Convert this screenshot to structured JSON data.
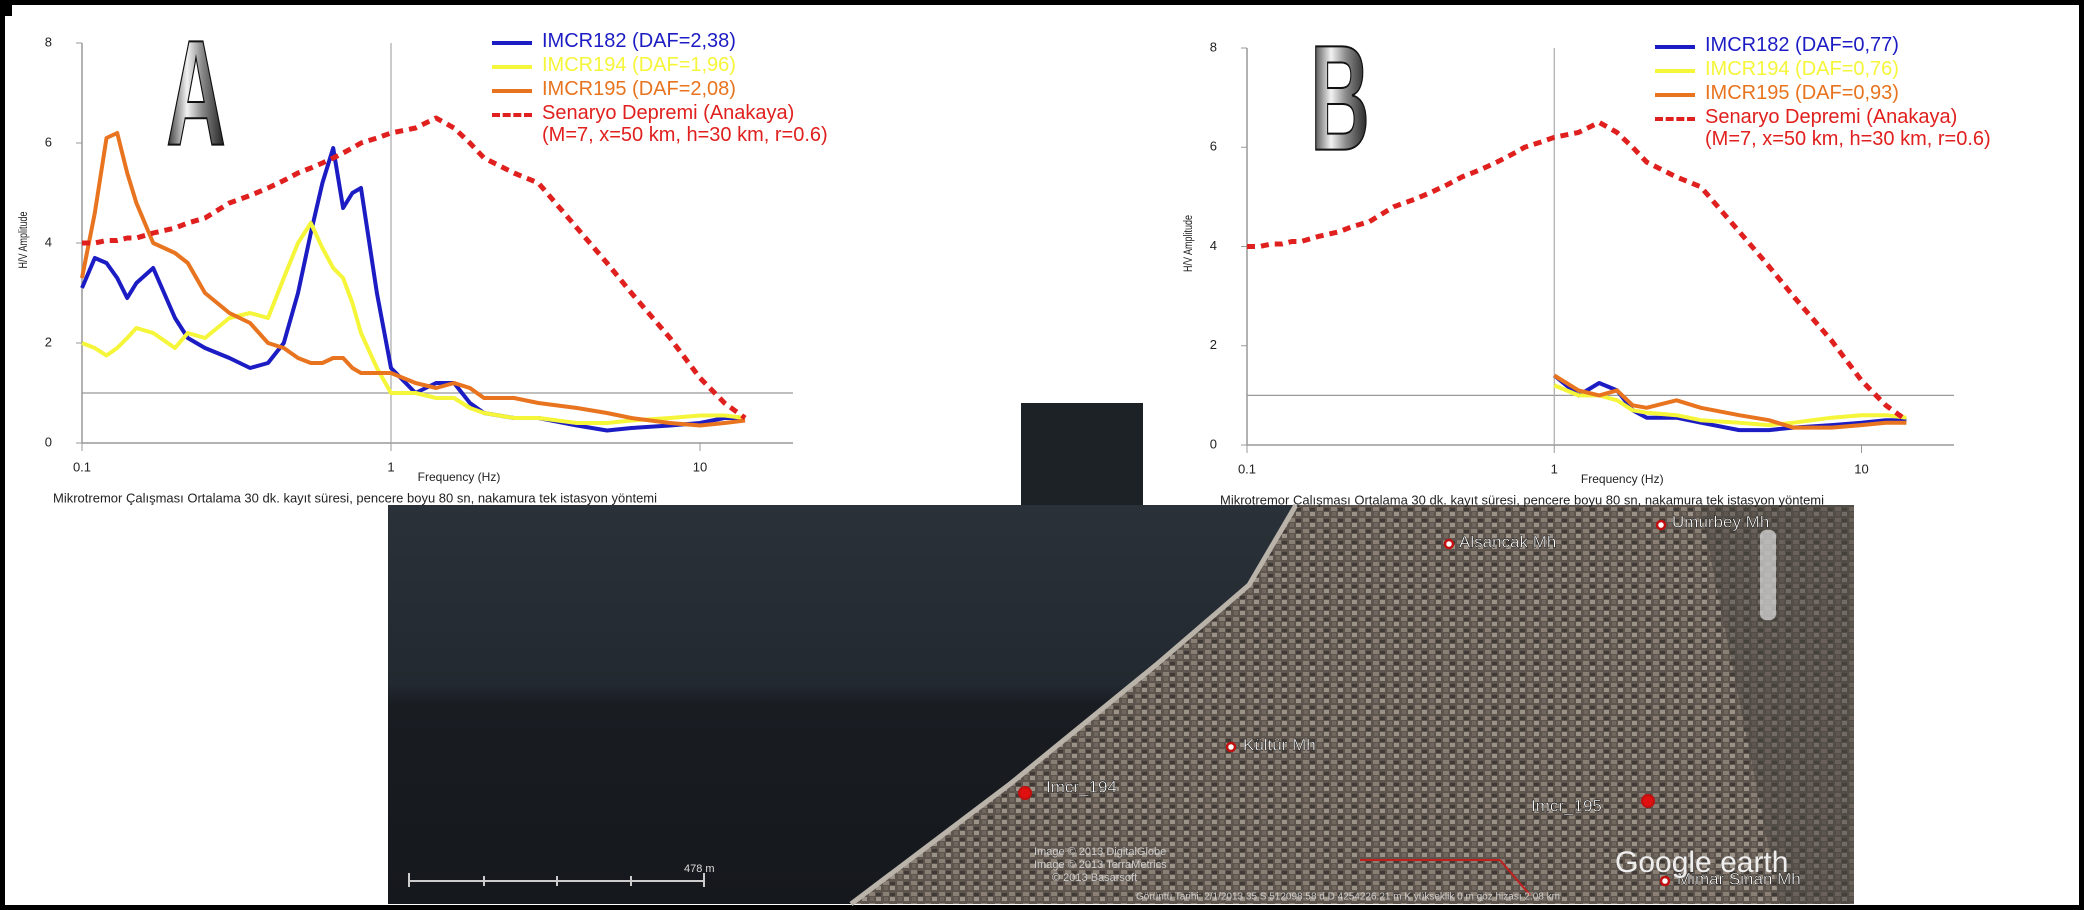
{
  "chart_data": [
    {
      "type": "line",
      "label": "A",
      "xscale": "log",
      "xlim": [
        0.1,
        20
      ],
      "ylim": [
        0,
        8
      ],
      "xticks": [
        0.1,
        1,
        10
      ],
      "yticks": [
        0,
        2,
        4,
        6,
        8
      ],
      "reference_lines": {
        "x": 1,
        "y": 1
      },
      "xlabel": "Frequency (Hz)",
      "ylabel": "H/V Amplitude",
      "caption": "Mikrotremor Çalışması Ortalama 30 dk. kayıt süresi, pencere boyu 80 sn, nakamura tek istasyon yöntemi",
      "x": [
        0.1,
        0.11,
        0.12,
        0.13,
        0.14,
        0.15,
        0.17,
        0.2,
        0.22,
        0.25,
        0.3,
        0.35,
        0.4,
        0.45,
        0.5,
        0.55,
        0.6,
        0.65,
        0.7,
        0.75,
        0.8,
        0.9,
        1,
        1.2,
        1.4,
        1.6,
        1.8,
        2,
        2.5,
        3,
        4,
        5,
        6,
        8,
        10,
        12,
        14
      ],
      "series": [
        {
          "name": "IMCR182 (DAF=2,38)",
          "color": "#1c1cc4",
          "style": "solid",
          "values": [
            3.1,
            3.7,
            3.6,
            3.3,
            2.9,
            3.2,
            3.5,
            2.5,
            2.1,
            1.9,
            1.7,
            1.5,
            1.6,
            2.0,
            3.0,
            4.2,
            5.2,
            5.9,
            4.7,
            5.0,
            5.1,
            3.0,
            1.5,
            1.0,
            1.2,
            1.2,
            0.8,
            0.6,
            0.5,
            0.5,
            0.35,
            0.25,
            0.3,
            0.35,
            0.4,
            0.5,
            0.5
          ]
        },
        {
          "name": "IMCR194 (DAF=1,96)",
          "color": "#f5f53a",
          "style": "solid",
          "values": [
            2.0,
            1.9,
            1.75,
            1.9,
            2.1,
            2.3,
            2.2,
            1.9,
            2.2,
            2.1,
            2.5,
            2.6,
            2.5,
            3.3,
            4.0,
            4.4,
            3.9,
            3.5,
            3.3,
            2.8,
            2.2,
            1.5,
            1.0,
            1.0,
            0.9,
            0.9,
            0.7,
            0.6,
            0.5,
            0.5,
            0.4,
            0.4,
            0.45,
            0.5,
            0.55,
            0.55,
            0.5
          ]
        },
        {
          "name": "IMCR195 (DAF=2,08)",
          "color": "#e8741f",
          "style": "solid",
          "values": [
            3.3,
            4.6,
            6.1,
            6.2,
            5.4,
            4.8,
            4.0,
            3.8,
            3.6,
            3.0,
            2.6,
            2.4,
            2.0,
            1.9,
            1.7,
            1.6,
            1.6,
            1.7,
            1.7,
            1.5,
            1.4,
            1.4,
            1.4,
            1.2,
            1.1,
            1.2,
            1.1,
            0.9,
            0.9,
            0.8,
            0.7,
            0.6,
            0.5,
            0.4,
            0.35,
            0.4,
            0.45
          ]
        },
        {
          "name": "Senaryo Depremi (Anakaya)\n(M=7, x=50 km, h=30 km, r=0.6)",
          "color": "#e0201e",
          "style": "dashed",
          "values": [
            4.0,
            4.0,
            4.05,
            4.05,
            4.1,
            4.1,
            4.2,
            4.3,
            4.4,
            4.5,
            4.8,
            4.95,
            5.1,
            5.25,
            5.4,
            5.5,
            5.6,
            5.7,
            5.8,
            5.9,
            6.0,
            6.1,
            6.2,
            6.3,
            6.5,
            6.3,
            6.0,
            5.7,
            5.4,
            5.2,
            4.3,
            3.6,
            3.0,
            2.1,
            1.3,
            0.8,
            0.5
          ]
        }
      ]
    },
    {
      "type": "line",
      "label": "B",
      "xscale": "log",
      "xlim": [
        0.1,
        20
      ],
      "ylim": [
        0,
        8
      ],
      "xticks": [
        0.1,
        1,
        10
      ],
      "yticks": [
        0,
        2,
        4,
        6,
        8
      ],
      "reference_lines": {
        "x": 1,
        "y": 1
      },
      "xlabel": "Frequency (Hz)",
      "ylabel": "H/V Amplitude",
      "caption": "Mikrotremor Çalışması Ortalama 30 dk. kayıt süresi, pencere boyu 80 sn, nakamura tek istasyon yöntemi",
      "x": [
        0.1,
        0.11,
        0.12,
        0.13,
        0.14,
        0.15,
        0.17,
        0.2,
        0.22,
        0.25,
        0.3,
        0.35,
        0.4,
        0.45,
        0.5,
        0.55,
        0.6,
        0.65,
        0.7,
        0.75,
        0.8,
        0.9,
        1,
        1.2,
        1.4,
        1.6,
        1.8,
        2,
        2.5,
        3,
        4,
        5,
        6,
        8,
        10,
        12,
        14
      ],
      "series": [
        {
          "name": "IMCR182 (DAF=0,77)",
          "color": "#1c1cc4",
          "style": "solid",
          "values": [
            null,
            null,
            null,
            null,
            null,
            null,
            null,
            null,
            null,
            null,
            null,
            null,
            null,
            null,
            null,
            null,
            null,
            null,
            null,
            null,
            null,
            null,
            1.4,
            1.0,
            1.25,
            1.1,
            0.7,
            0.55,
            0.55,
            0.45,
            0.3,
            0.3,
            0.35,
            0.4,
            0.45,
            0.5,
            0.5
          ]
        },
        {
          "name": "IMCR194 (DAF=0,76)",
          "color": "#f5f53a",
          "style": "solid",
          "values": [
            null,
            null,
            null,
            null,
            null,
            null,
            null,
            null,
            null,
            null,
            null,
            null,
            null,
            null,
            null,
            null,
            null,
            null,
            null,
            null,
            null,
            null,
            1.2,
            1.0,
            1.0,
            0.9,
            0.7,
            0.65,
            0.6,
            0.5,
            0.45,
            0.4,
            0.45,
            0.55,
            0.6,
            0.6,
            0.55
          ]
        },
        {
          "name": "IMCR195 (DAF=0,93)",
          "color": "#e8741f",
          "style": "solid",
          "values": [
            null,
            null,
            null,
            null,
            null,
            null,
            null,
            null,
            null,
            null,
            null,
            null,
            null,
            null,
            null,
            null,
            null,
            null,
            null,
            null,
            null,
            null,
            1.4,
            1.1,
            1.0,
            1.1,
            0.8,
            0.75,
            0.9,
            0.75,
            0.6,
            0.5,
            0.35,
            0.35,
            0.4,
            0.45,
            0.45
          ]
        },
        {
          "name": "Senaryo Depremi (Anakaya)\n(M=7, x=50 km, h=30 km, r=0.6)",
          "color": "#e0201e",
          "style": "dashed",
          "values": [
            4.0,
            4.0,
            4.05,
            4.05,
            4.1,
            4.1,
            4.2,
            4.3,
            4.4,
            4.5,
            4.8,
            4.95,
            5.1,
            5.25,
            5.4,
            5.5,
            5.6,
            5.7,
            5.8,
            5.9,
            6.0,
            6.1,
            6.2,
            6.3,
            6.5,
            6.3,
            6.0,
            5.7,
            5.4,
            5.2,
            4.3,
            3.6,
            3.0,
            2.1,
            1.3,
            0.8,
            0.5
          ]
        }
      ]
    }
  ],
  "map": {
    "places": [
      "Alsancak Mh",
      "Umurbey Mh",
      "Kültür Mh",
      "Imcr_194",
      "Imcr_195",
      "Mimar Sinan Mh"
    ],
    "scale_label": "478 m",
    "attribution": [
      "Image © 2013 DigitalGlobe",
      "Image © 2013 TerraMetrics",
      "© 2013 Basarsoft"
    ],
    "logo": "Google earth",
    "status_bar": "Görüntü Tarihi: 2/1/2013    35 S 512098.58 d.D 4254226.21 m K yükseklik    0 m    göz hizası  2.08 km"
  }
}
